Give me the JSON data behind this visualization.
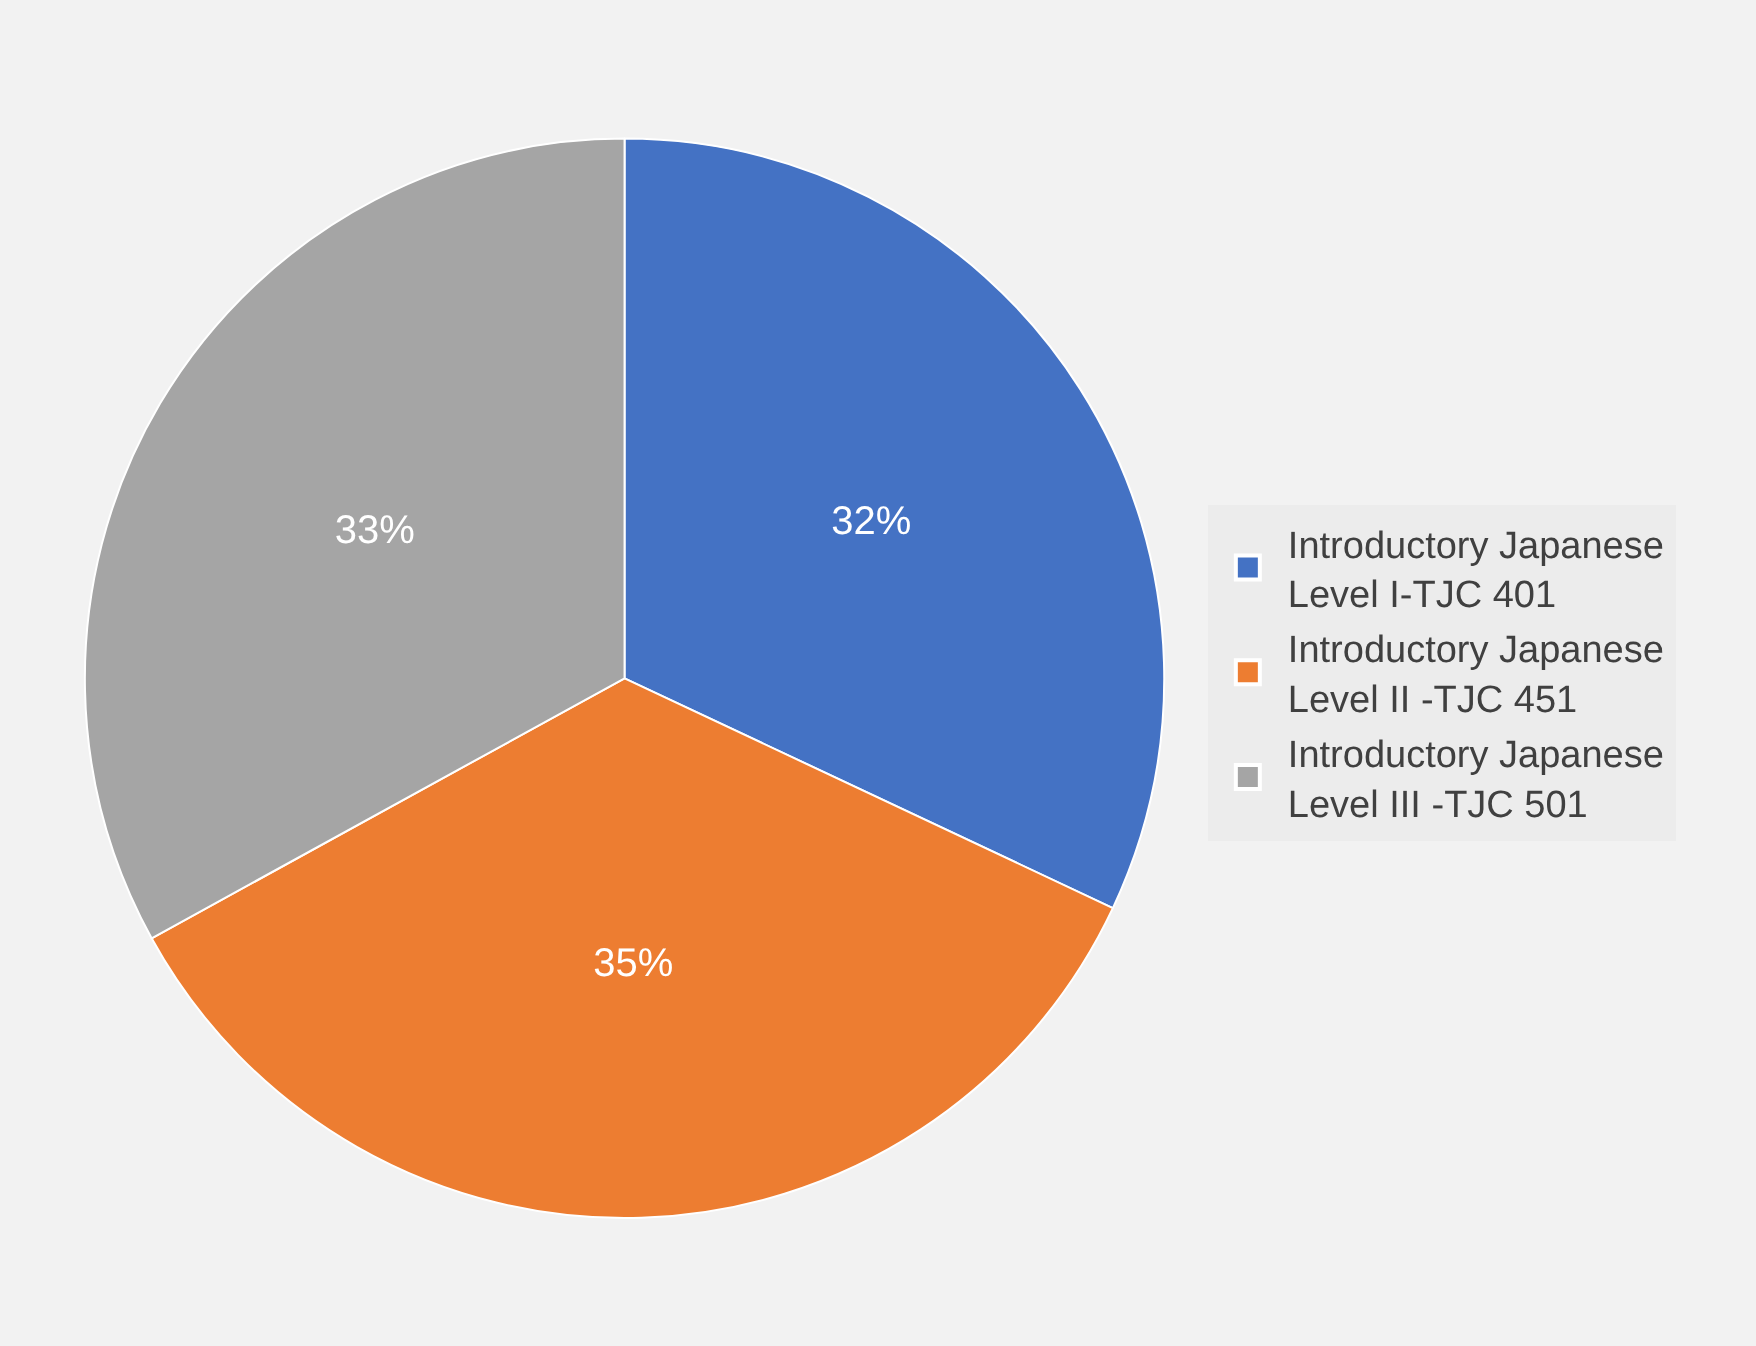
{
  "chart_data": {
    "type": "pie",
    "categories": [
      "Introductory Japanese Level I-TJC 401",
      "Introductory Japanese Level II -TJC 451",
      "Introductory Japanese Level III -TJC 501"
    ],
    "values": [
      32,
      35,
      33
    ],
    "value_labels": [
      "32%",
      "35%",
      "33%"
    ],
    "colors": [
      "#4472c4",
      "#ed7d31",
      "#a5a5a5"
    ],
    "legend": "right"
  }
}
